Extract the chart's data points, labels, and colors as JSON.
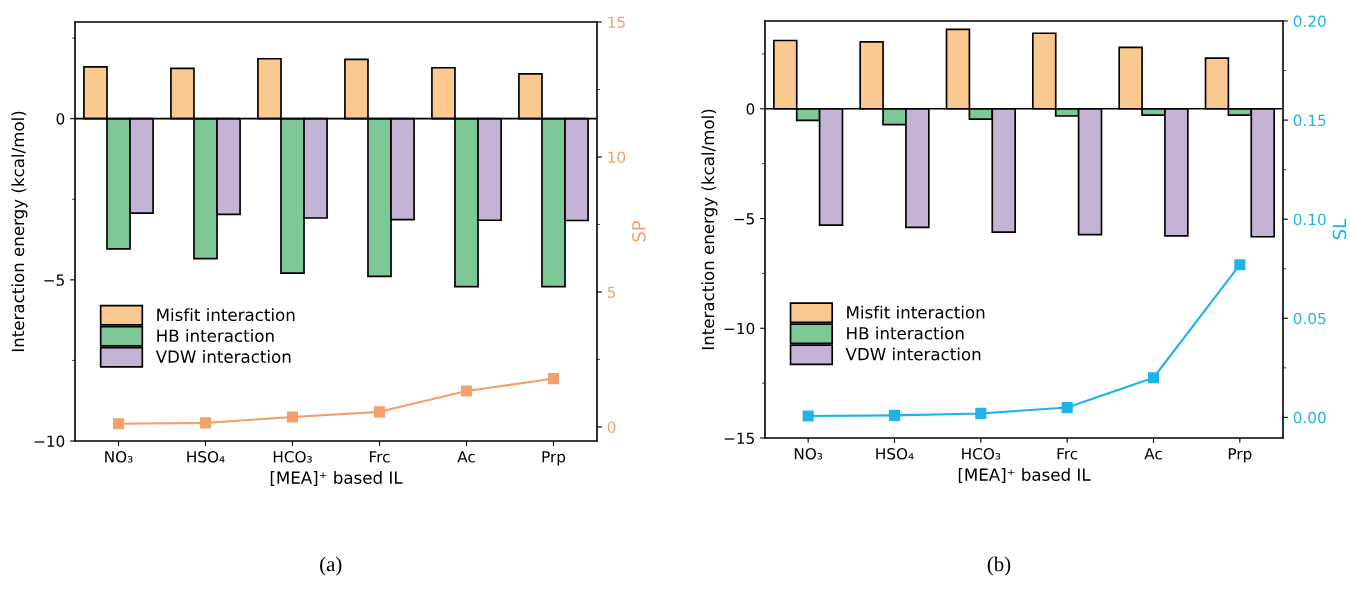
{
  "chart_data": [
    {
      "type": "bar",
      "categories": [
        "NO₃",
        "HSO₄",
        "HCO₃",
        "Frc",
        "Ac",
        "Prp"
      ],
      "xlabel": "[MEA]⁺ based IL",
      "ylabel": "Interaction energy (kcal/mol)",
      "y2label": "SP",
      "ylim": [
        -10,
        3
      ],
      "yticks": [
        {
          "value": -10,
          "label": "−10"
        },
        {
          "value": -5,
          "label": "−5"
        },
        0
      ],
      "y2lim": [
        -0.52,
        15
      ],
      "y2ticks": [
        0,
        5,
        10,
        15
      ],
      "legend": "center left",
      "annotations": [
        "(a)"
      ],
      "series": [
        {
          "name": "Misfit interaction",
          "color": "#f9c990",
          "values": [
            1.61,
            1.56,
            1.86,
            1.84,
            1.58,
            1.39
          ]
        },
        {
          "name": "HB interaction",
          "color": "#7dc896",
          "values": [
            -4.04,
            -4.34,
            -4.79,
            -4.89,
            -5.21,
            -5.21
          ]
        },
        {
          "name": "VDW interaction",
          "color": "#c5b3d6",
          "values": [
            -2.93,
            -2.97,
            -3.08,
            -3.13,
            -3.15,
            -3.16
          ]
        },
        {
          "type": "line",
          "axis": "y2",
          "color": "#f4a06a",
          "marker": "square",
          "values": [
            0.12,
            0.15,
            0.37,
            0.56,
            1.33,
            1.79
          ]
        }
      ]
    },
    {
      "type": "bar",
      "categories": [
        "NO₃",
        "HSO₄",
        "HCO₃",
        "Frc",
        "Ac",
        "Prp"
      ],
      "xlabel": "[MEA]⁺ based IL",
      "ylabel": "Interaction energy (kcal/mol)",
      "y2label": "SL",
      "ylim": [
        -15,
        4
      ],
      "yticks": [
        {
          "value": -15,
          "label": "−15"
        },
        {
          "value": -10,
          "label": "−10"
        },
        {
          "value": -5,
          "label": "−5"
        },
        0
      ],
      "y2lim": [
        -0.0104,
        0.2
      ],
      "y2ticks": [
        {
          "value": 0,
          "label": "0.00"
        },
        {
          "value": 0.05,
          "label": "0.05"
        },
        {
          "value": 0.1,
          "label": "0.10"
        },
        {
          "value": 0.15,
          "label": "0.15"
        },
        {
          "value": 0.2,
          "label": "0.20"
        }
      ],
      "legend": "center left",
      "annotations": [
        "(b)"
      ],
      "series": [
        {
          "name": "Misfit interaction",
          "color": "#f9c990",
          "values": [
            3.11,
            3.05,
            3.62,
            3.44,
            2.8,
            2.31
          ]
        },
        {
          "name": "HB interaction",
          "color": "#7dc896",
          "values": [
            -0.53,
            -0.72,
            -0.47,
            -0.33,
            -0.29,
            -0.29
          ]
        },
        {
          "name": "VDW interaction",
          "color": "#c5b3d6",
          "values": [
            -5.3,
            -5.4,
            -5.62,
            -5.73,
            -5.79,
            -5.83
          ]
        },
        {
          "type": "line",
          "axis": "y2",
          "color": "#1fb4e8",
          "marker": "square",
          "values": [
            0.0007,
            0.001,
            0.002,
            0.005,
            0.02,
            0.077
          ]
        }
      ]
    }
  ]
}
